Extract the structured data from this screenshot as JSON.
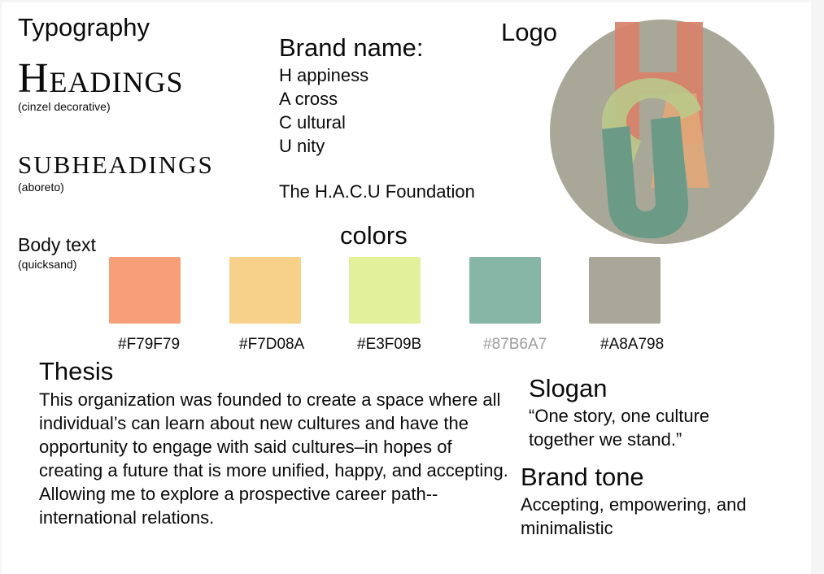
{
  "typography": {
    "title": "Typography",
    "headings_sample": "Headings",
    "headings_font": "(cinzel decorative)",
    "subheadings_sample": "SUBHEADINGS",
    "subheadings_font": "(aboreto)",
    "body_sample": "Body text",
    "body_font": "(quicksand)"
  },
  "brand": {
    "title": "Brand name:",
    "lines": [
      "H appiness",
      "A cross",
      "C ultural",
      "U nity"
    ],
    "foundation": "The H.A.C.U Foundation"
  },
  "logo": {
    "title": "Logo",
    "circle_color": "#A8A798",
    "letter_colors": [
      "#D9836A",
      "#E3A878",
      "#B9C98A",
      "#6B9A86"
    ],
    "letters": "HACU"
  },
  "colors": {
    "title": "colors",
    "swatches": [
      {
        "hex": "#F79F79",
        "label": "#F79F79"
      },
      {
        "hex": "#F7D08A",
        "label": "#F7D08A"
      },
      {
        "hex": "#E3F09B",
        "label": "#E3F09B"
      },
      {
        "hex": "#87B6A7",
        "label": "#87B6A7"
      },
      {
        "hex": "#A8A798",
        "label": "#A8A798"
      }
    ]
  },
  "thesis": {
    "title": "Thesis",
    "body": "This organization was founded to create a space where all individual’s can learn about new cultures and have the opportunity to engage with said cultures–in hopes of creating a future that is more unified, happy, and accepting. Allowing me to explore a prospective career path-- international relations."
  },
  "slogan": {
    "title": "Slogan",
    "body": "“One story, one culture together we stand.”"
  },
  "tone": {
    "title": "Brand tone",
    "body": "Accepting, empowering, and minimalistic"
  }
}
